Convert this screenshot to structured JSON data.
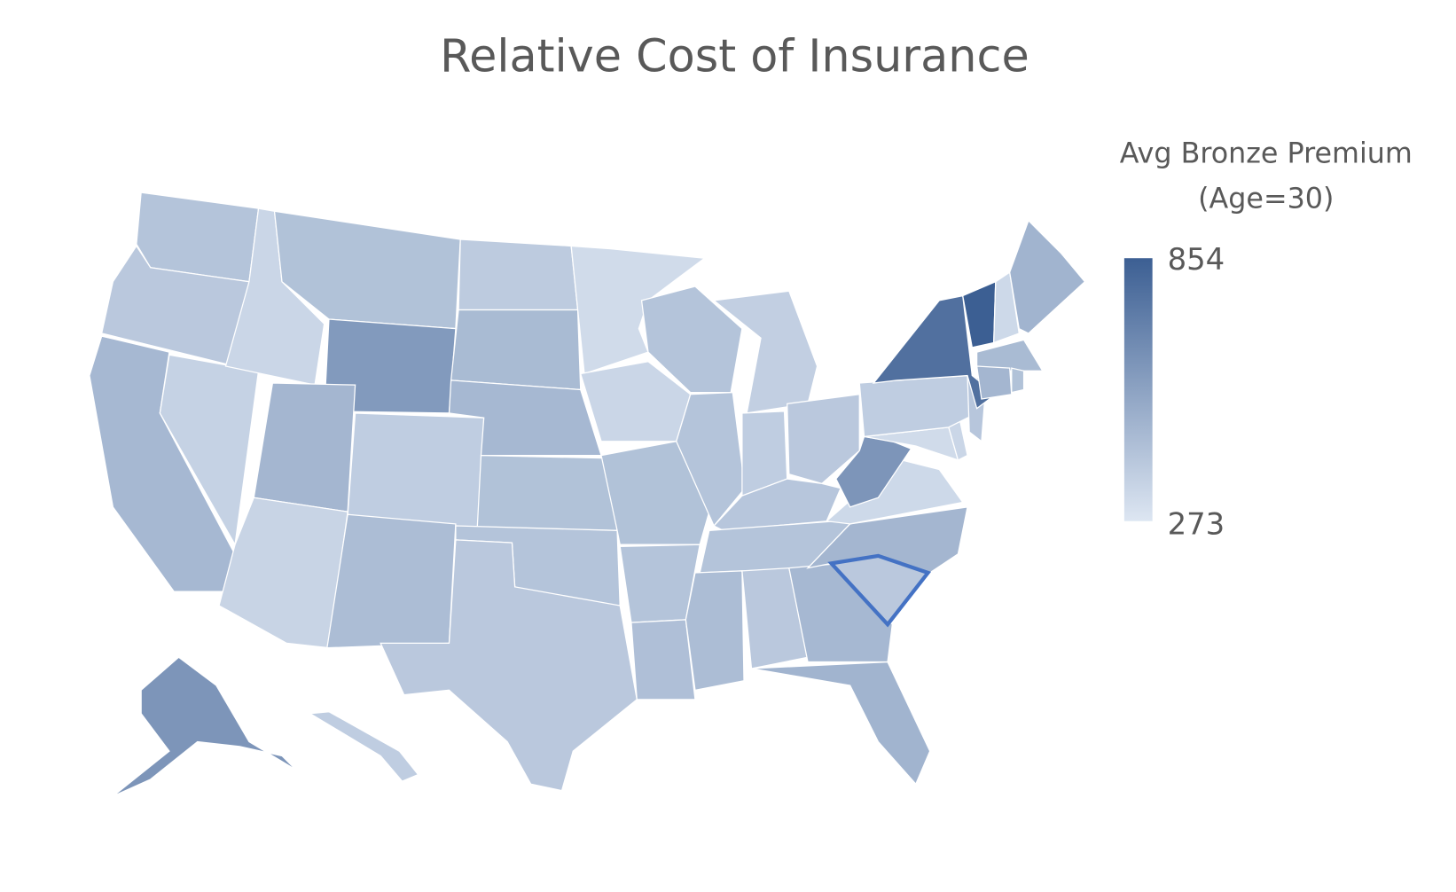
{
  "chart_data": {
    "type": "choropleth",
    "title": "Relative Cost of Insurance",
    "legend_title": [
      "Avg Bronze Premium",
      "(Age=30)"
    ],
    "legend_max": 854,
    "legend_min": 273,
    "color_max": "#3c5f93",
    "color_min": "#dde6f2",
    "values": [
      420,
      400,
      470,
      360,
      340,
      430,
      600,
      480,
      350,
      380,
      450,
      390,
      460,
      470,
      430,
      420,
      400,
      320,
      340,
      430,
      420,
      440,
      420,
      420,
      370,
      380,
      400,
      410,
      420,
      450,
      400,
      470,
      490,
      400,
      480,
      330,
      620,
      320,
      340,
      380,
      410,
      780,
      854,
      330,
      490,
      460,
      480,
      430,
      620,
      380
    ],
    "selected": 33,
    "selected_color": "#4472c4"
  }
}
